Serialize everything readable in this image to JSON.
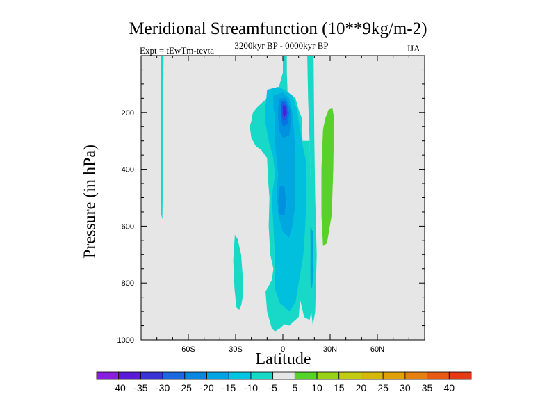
{
  "chart_data": {
    "type": "contour",
    "title": "Meridional Streamfunction (10**9kg/m-2)",
    "left_string": "Expt = tEwTm-tevta",
    "center_string": "3200kyr BP - 0000kyr BP",
    "right_string": "JJA",
    "xlabel": "Latitude",
    "ylabel": "Pressure (in hPa)",
    "xlim": [
      -90,
      90
    ],
    "ylim": [
      1000,
      0
    ],
    "x_ticks": [
      -60,
      -30,
      0,
      30,
      60
    ],
    "x_tick_labels": [
      "60S",
      "30S",
      "0",
      "30N",
      "60N"
    ],
    "y_ticks": [
      200,
      400,
      600,
      800,
      1000
    ],
    "y_tick_labels": [
      "200",
      "400",
      "600",
      "800",
      "1000"
    ],
    "background_color": "#e6e6e6",
    "contour_regions": [
      {
        "name": "thin-band-70S",
        "level": -5,
        "color": "#18d8c8",
        "points": [
          [
            -77.2,
            0
          ],
          [
            -75.7,
            0
          ],
          [
            -76.2,
            250
          ],
          [
            -76.2,
            450
          ],
          [
            -76.5,
            575
          ],
          [
            -77.2,
            560
          ],
          [
            -77.6,
            350
          ],
          [
            -77.6,
            150
          ]
        ]
      },
      {
        "name": "core-band-equator",
        "level": -5,
        "color": "#18d8c8",
        "points": [
          [
            0,
            0
          ],
          [
            2.5,
            0
          ],
          [
            2.5,
            60
          ],
          [
            3,
            130
          ],
          [
            8,
            150
          ],
          [
            10,
            190
          ],
          [
            12,
            220
          ],
          [
            12.5,
            300
          ],
          [
            17,
            300
          ],
          [
            18,
            500
          ],
          [
            17.5,
            700
          ],
          [
            19,
            800
          ],
          [
            18,
            900
          ],
          [
            17,
            930
          ],
          [
            13.5,
            920
          ],
          [
            11,
            860
          ],
          [
            10,
            920
          ],
          [
            8,
            930
          ],
          [
            4,
            950
          ],
          [
            1,
            945
          ],
          [
            -2,
            960
          ],
          [
            -5,
            970
          ],
          [
            -7,
            960
          ],
          [
            -10,
            900
          ],
          [
            -11,
            830
          ],
          [
            -7,
            790
          ],
          [
            -6,
            750
          ],
          [
            -8,
            700
          ],
          [
            -9,
            600
          ],
          [
            -8.5,
            500
          ],
          [
            -9.5,
            430
          ],
          [
            -10,
            360
          ],
          [
            -14,
            330
          ],
          [
            -17,
            320
          ],
          [
            -20,
            290
          ],
          [
            -21,
            250
          ],
          [
            -20,
            230
          ],
          [
            -19,
            200
          ],
          [
            -16,
            180
          ],
          [
            -12,
            160
          ],
          [
            -8,
            140
          ],
          [
            -3,
            120
          ],
          [
            0,
            60
          ]
        ]
      },
      {
        "name": "right-band-20N",
        "level": -5,
        "color": "#18d8c8",
        "points": [
          [
            15.5,
            0
          ],
          [
            19.5,
            0
          ],
          [
            20,
            300
          ],
          [
            20.5,
            500
          ],
          [
            21.5,
            700
          ],
          [
            21,
            800
          ],
          [
            20.5,
            900
          ],
          [
            19,
            950
          ],
          [
            18,
            900
          ],
          [
            17.5,
            700
          ],
          [
            18,
            500
          ],
          [
            17,
            300
          ],
          [
            16,
            150
          ]
        ]
      },
      {
        "name": "left-band-25S",
        "level": -5,
        "color": "#18d8c8",
        "points": [
          [
            -30.5,
            630
          ],
          [
            -28.7,
            645
          ],
          [
            -26.5,
            700
          ],
          [
            -25.2,
            800
          ],
          [
            -25.5,
            850
          ],
          [
            -26.5,
            880
          ],
          [
            -27.7,
            895
          ],
          [
            -29.5,
            885
          ],
          [
            -30.7,
            820
          ],
          [
            -31.5,
            720
          ]
        ]
      },
      {
        "name": "core-10",
        "level": -10,
        "color": "#00c0de",
        "points": [
          [
            -10,
            120
          ],
          [
            -3,
            110
          ],
          [
            1,
            120
          ],
          [
            6,
            140
          ],
          [
            9,
            190
          ],
          [
            10,
            230
          ],
          [
            12,
            300
          ],
          [
            15,
            380
          ],
          [
            15,
            500
          ],
          [
            14,
            620
          ],
          [
            13,
            700
          ],
          [
            10,
            800
          ],
          [
            8,
            870
          ],
          [
            4,
            900
          ],
          [
            -2,
            870
          ],
          [
            -5,
            820
          ],
          [
            -5,
            700
          ],
          [
            -6,
            600
          ],
          [
            -7,
            500
          ],
          [
            -5,
            420
          ],
          [
            -6,
            360
          ],
          [
            -9,
            300
          ],
          [
            -11,
            240
          ],
          [
            -11,
            180
          ]
        ]
      },
      {
        "name": "core-15",
        "level": -15,
        "color": "#00a8e0",
        "points": [
          [
            -6,
            140
          ],
          [
            0,
            130
          ],
          [
            4,
            150
          ],
          [
            6,
            200
          ],
          [
            7,
            260
          ],
          [
            8,
            340
          ],
          [
            8,
            420
          ],
          [
            8,
            520
          ],
          [
            6,
            600
          ],
          [
            4,
            640
          ],
          [
            0,
            620
          ],
          [
            -3,
            560
          ],
          [
            -4,
            480
          ],
          [
            -3,
            420
          ],
          [
            -4,
            360
          ],
          [
            -5,
            300
          ],
          [
            -5,
            220
          ],
          [
            -6,
            180
          ]
        ]
      },
      {
        "name": "core-20",
        "level": -20,
        "color": "#0090e0",
        "points": [
          [
            -2,
            150
          ],
          [
            2,
            150
          ],
          [
            5,
            190
          ],
          [
            5,
            240
          ],
          [
            4,
            280
          ],
          [
            0,
            290
          ],
          [
            -2,
            270
          ],
          [
            -3,
            220
          ],
          [
            -3,
            180
          ]
        ]
      },
      {
        "name": "core-20-lower",
        "level": -20,
        "color": "#0090e0",
        "points": [
          [
            -2,
            460
          ],
          [
            1,
            460
          ],
          [
            2,
            520
          ],
          [
            1,
            560
          ],
          [
            -2,
            560
          ],
          [
            -3,
            510
          ]
        ]
      },
      {
        "name": "right-band-15",
        "level": -15,
        "color": "#00a8e0",
        "points": [
          [
            17.5,
            600
          ],
          [
            19,
            620
          ],
          [
            19.5,
            760
          ],
          [
            18.5,
            820
          ],
          [
            17.5,
            800
          ]
        ]
      },
      {
        "name": "core-25",
        "level": -25,
        "color": "#0a70e6",
        "points": [
          [
            -1,
            160
          ],
          [
            2,
            160
          ],
          [
            4,
            200
          ],
          [
            3,
            240
          ],
          [
            0,
            250
          ],
          [
            -1,
            220
          ]
        ]
      },
      {
        "name": "core-30",
        "level": -30,
        "color": "#2a52e0",
        "points": [
          [
            -0.5,
            165
          ],
          [
            2,
            170
          ],
          [
            3,
            200
          ],
          [
            2,
            225
          ],
          [
            0,
            225
          ],
          [
            -1,
            200
          ]
        ]
      },
      {
        "name": "core-35",
        "level": -35,
        "color": "#4a20d8",
        "points": [
          [
            0,
            175
          ],
          [
            2,
            180
          ],
          [
            2.5,
            205
          ],
          [
            1,
            215
          ],
          [
            0,
            205
          ]
        ]
      },
      {
        "name": "positive-band-30N",
        "level": 5,
        "color": "#5ad02a",
        "points": [
          [
            29,
            190
          ],
          [
            31.5,
            185
          ],
          [
            32.5,
            220
          ],
          [
            32,
            400
          ],
          [
            31,
            560
          ],
          [
            28,
            660
          ],
          [
            25.5,
            670
          ],
          [
            24.5,
            560
          ],
          [
            24.5,
            400
          ],
          [
            25.5,
            260
          ],
          [
            27,
            220
          ]
        ]
      }
    ],
    "colorbar": {
      "levels": [
        "-40",
        "-35",
        "-30",
        "-25",
        "-20",
        "-15",
        "-10",
        "-5",
        "5",
        "10",
        "15",
        "20",
        "25",
        "30",
        "35",
        "40"
      ],
      "colors": [
        "#8a1ee0",
        "#5a1ad8",
        "#3a34d2",
        "#1c68e0",
        "#0a88e0",
        "#00a4e4",
        "#00c4e0",
        "#18d8c8",
        "#e6e6e6",
        "#54d42a",
        "#9ad21a",
        "#c2cc10",
        "#d6b80a",
        "#e0a00a",
        "#e68010",
        "#e85a12",
        "#e83a12"
      ]
    }
  }
}
